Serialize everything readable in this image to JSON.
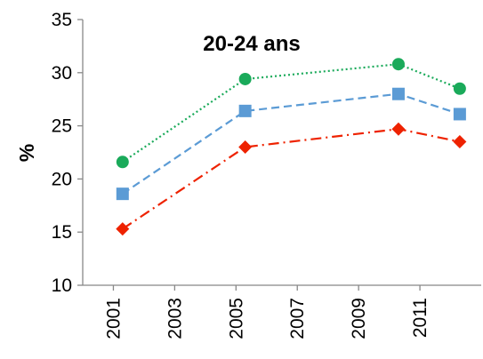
{
  "chart_data": {
    "type": "line",
    "title": "20-24 ans",
    "xlabel": "",
    "ylabel": "%",
    "xlim": [
      2000,
      2013
    ],
    "ylim": [
      10,
      35
    ],
    "x_ticks": [
      2001,
      2003,
      2005,
      2007,
      2009,
      2011
    ],
    "y_ticks": [
      10,
      15,
      20,
      25,
      30,
      35
    ],
    "x_tick_labels": [
      "2001",
      "2003",
      "2005",
      "2007",
      "2009",
      "2011"
    ],
    "y_tick_labels": [
      "10",
      "15",
      "20",
      "25",
      "30",
      "35"
    ],
    "grid": false,
    "legend": "none",
    "series": [
      {
        "color": "#1aaa5a",
        "line_style": "dotted",
        "marker": "circle",
        "points": [
          {
            "x": 2001.3,
            "y": 21.6
          },
          {
            "x": 2005.3,
            "y": 29.4
          },
          {
            "x": 2010.3,
            "y": 30.8
          },
          {
            "x": 2012.3,
            "y": 28.5
          }
        ]
      },
      {
        "color": "#5b9bd5",
        "line_style": "dashed",
        "marker": "square",
        "points": [
          {
            "x": 2001.3,
            "y": 18.6
          },
          {
            "x": 2005.3,
            "y": 26.4
          },
          {
            "x": 2010.3,
            "y": 28.0
          },
          {
            "x": 2012.3,
            "y": 26.1
          }
        ]
      },
      {
        "color": "#ee2200",
        "line_style": "dash-dot",
        "marker": "diamond",
        "points": [
          {
            "x": 2001.3,
            "y": 15.3
          },
          {
            "x": 2005.3,
            "y": 23.0
          },
          {
            "x": 2010.3,
            "y": 24.7
          },
          {
            "x": 2012.3,
            "y": 23.5
          }
        ]
      }
    ]
  }
}
